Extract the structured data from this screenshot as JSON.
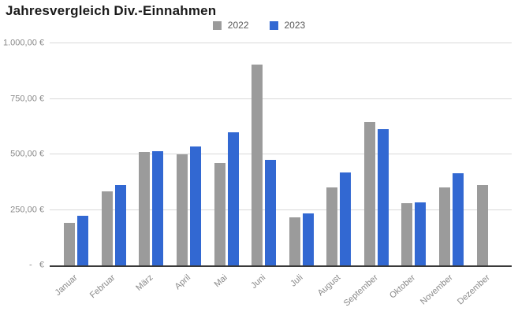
{
  "chart_data": {
    "type": "bar",
    "title": "Jahresvergleich Div.-Einnahmen",
    "categories": [
      "Januar",
      "Februar",
      "März",
      "April",
      "Mai",
      "Juni",
      "Juli",
      "August",
      "September",
      "Oktober",
      "November",
      "Dezember"
    ],
    "series": [
      {
        "name": "2022",
        "color": "#9b9b9b",
        "values": [
          190,
          335,
          510,
          500,
          460,
          905,
          215,
          350,
          645,
          280,
          350,
          360
        ]
      },
      {
        "name": "2023",
        "color": "#3268d2",
        "values": [
          225,
          360,
          515,
          535,
          600,
          475,
          235,
          420,
          615,
          285,
          415,
          null
        ]
      }
    ],
    "xlabel": "",
    "ylabel": "",
    "ylim": [
      0,
      1000
    ],
    "y_ticks": [
      {
        "value": 0,
        "label": "-   €"
      },
      {
        "value": 250,
        "label": "250,00 €"
      },
      {
        "value": 500,
        "label": "500,00 €"
      },
      {
        "value": 750,
        "label": "750,00 €"
      },
      {
        "value": 1000,
        "label": "1.000,00 €"
      }
    ],
    "grid": true,
    "legend_position": "top",
    "currency_symbol": "€"
  },
  "colors": {
    "background": "#ffffff",
    "gridline": "#d9d9d9",
    "axis_line": "#3a3a3a",
    "tick_text": "#8a8a8a",
    "legend_text": "#595959",
    "title_text": "#1a1a1a",
    "series_2022": "#9b9b9b",
    "series_2023": "#3268d2"
  }
}
